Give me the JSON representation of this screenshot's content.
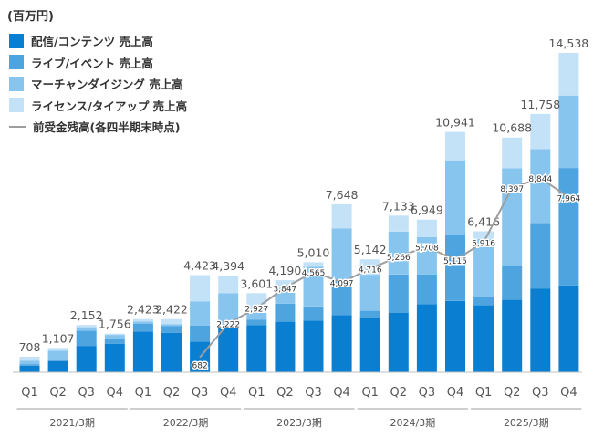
{
  "chart_data": {
    "type": "bar",
    "stacked": true,
    "unit_label": "(百万円)",
    "fiscal_years": [
      "2021/3期",
      "2022/3期",
      "2023/3期",
      "2024/3期",
      "2025/3期"
    ],
    "quarters": [
      "Q1",
      "Q2",
      "Q3",
      "Q4"
    ],
    "ylim": [
      0,
      15000
    ],
    "grid": false,
    "legend_position": "top-left",
    "totals": [
      708,
      1107,
      2152,
      1756,
      2423,
      2422,
      4423,
      4394,
      3601,
      4190,
      5010,
      7648,
      5142,
      7133,
      6949,
      10941,
      6416,
      10688,
      11758,
      14538
    ],
    "series": [
      {
        "name": "配信/コンテンツ 売上高",
        "color": "#0a7fd2",
        "values": [
          300,
          500,
          1200,
          1300,
          1850,
          1800,
          1400,
          2050,
          2150,
          2300,
          2350,
          2600,
          2450,
          2700,
          3100,
          3250,
          3050,
          3300,
          3800,
          3950
        ]
      },
      {
        "name": "ライブ/イベント 売上高",
        "color": "#4da4df",
        "values": [
          70,
          80,
          700,
          200,
          350,
          300,
          720,
          0,
          250,
          820,
          650,
          1550,
          350,
          1750,
          1350,
          3000,
          400,
          1550,
          3000,
          5350
        ]
      },
      {
        "name": "マーチャンダイジング 売上高",
        "color": "#87c5ef",
        "values": [
          150,
          400,
          150,
          200,
          110,
          90,
          1100,
          1550,
          501,
          700,
          1800,
          2400,
          1642,
          1950,
          1699,
          3400,
          2616,
          4438,
          3358,
          3300
        ]
      },
      {
        "name": "ライセンス/タイアップ 売上高",
        "color": "#c3e2f7",
        "values": [
          188,
          127,
          102,
          56,
          113,
          232,
          1203,
          794,
          700,
          370,
          210,
          1098,
          700,
          733,
          800,
          1291,
          350,
          1400,
          1600,
          1938
        ]
      }
    ],
    "line": {
      "name": "前受金残高(各四半期末時点)",
      "color": "#9e9e9e",
      "start_index": 6,
      "values": [
        682,
        2222,
        2927,
        3847,
        4565,
        4097,
        4716,
        5266,
        5708,
        5115,
        5916,
        8397,
        8844,
        7964
      ]
    }
  }
}
